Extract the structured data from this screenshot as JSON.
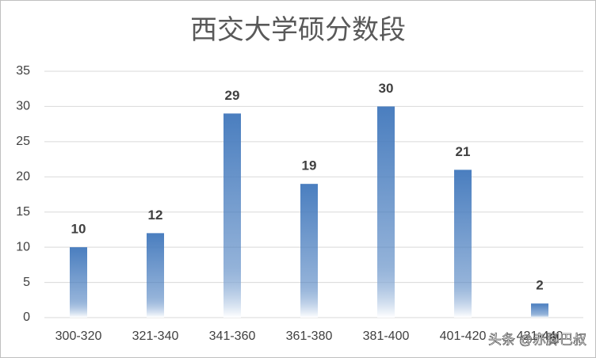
{
  "chart_data": {
    "type": "bar",
    "title": "西交大学硕分数段",
    "categories": [
      "300-320",
      "321-340",
      "341-360",
      "361-380",
      "381-400",
      "401-420",
      "421-440"
    ],
    "values": [
      10,
      12,
      29,
      19,
      30,
      21,
      2
    ],
    "color": "#4a7ebf",
    "ylim": [
      0,
      35
    ],
    "yticks": [
      0,
      5,
      10,
      15,
      20,
      25,
      30,
      35
    ],
    "grid": true,
    "watermark": "头条 @赤脚巴叔"
  }
}
